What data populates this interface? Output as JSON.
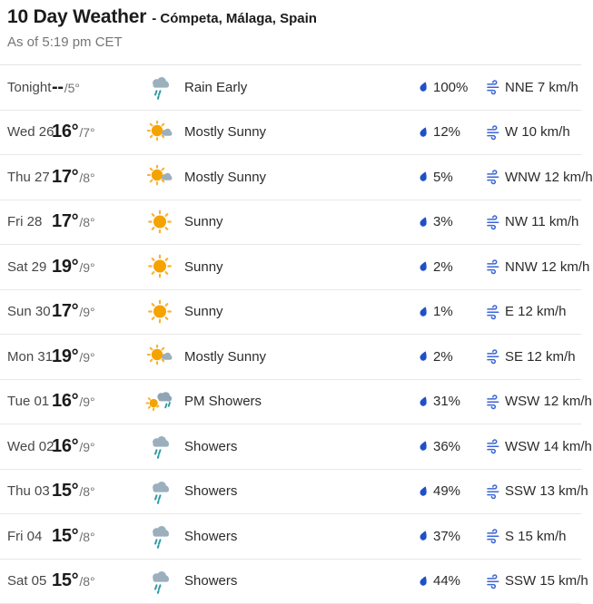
{
  "header": {
    "title": "10 Day Weather",
    "location": "- Cómpeta, Málaga, Spain",
    "as_of": "As of 5:19 pm CET"
  },
  "colors": {
    "precip_droplet": "#1e50c8",
    "wind_icon": "#3b66d6",
    "sun": "#f5a300",
    "sun_rays": "#f9b233",
    "cloud_gray": "#9bafbd",
    "cloud_dark": "#8fa4b5",
    "rain_teal": "#2f9aa5",
    "divider": "#e8e8e8",
    "text_dark": "#1b1b1b",
    "text_gray": "#767676"
  },
  "forecast": {
    "rows": [
      {
        "day": "Tonight",
        "hi": "--",
        "lo": "/5°",
        "icon": "showers",
        "condition": "Rain Early",
        "precip": "100%",
        "wind": "NNE 7 km/h"
      },
      {
        "day": "Wed 26",
        "hi": "16°",
        "lo": "/7°",
        "icon": "mostly-sunny",
        "condition": "Mostly Sunny",
        "precip": "12%",
        "wind": "W 10 km/h"
      },
      {
        "day": "Thu 27",
        "hi": "17°",
        "lo": "/8°",
        "icon": "mostly-sunny",
        "condition": "Mostly Sunny",
        "precip": "5%",
        "wind": "WNW 12 km/h"
      },
      {
        "day": "Fri 28",
        "hi": "17°",
        "lo": "/8°",
        "icon": "sunny",
        "condition": "Sunny",
        "precip": "3%",
        "wind": "NW 11 km/h"
      },
      {
        "day": "Sat 29",
        "hi": "19°",
        "lo": "/9°",
        "icon": "sunny",
        "condition": "Sunny",
        "precip": "2%",
        "wind": "NNW 12 km/h"
      },
      {
        "day": "Sun 30",
        "hi": "17°",
        "lo": "/9°",
        "icon": "sunny",
        "condition": "Sunny",
        "precip": "1%",
        "wind": "E 12 km/h"
      },
      {
        "day": "Mon 31",
        "hi": "19°",
        "lo": "/9°",
        "icon": "mostly-sunny",
        "condition": "Mostly Sunny",
        "precip": "2%",
        "wind": "SE 12 km/h"
      },
      {
        "day": "Tue 01",
        "hi": "16°",
        "lo": "/9°",
        "icon": "pm-showers",
        "condition": "PM Showers",
        "precip": "31%",
        "wind": "WSW 12 km/h"
      },
      {
        "day": "Wed 02",
        "hi": "16°",
        "lo": "/9°",
        "icon": "showers",
        "condition": "Showers",
        "precip": "36%",
        "wind": "WSW 14 km/h"
      },
      {
        "day": "Thu 03",
        "hi": "15°",
        "lo": "/8°",
        "icon": "showers",
        "condition": "Showers",
        "precip": "49%",
        "wind": "SSW 13 km/h"
      },
      {
        "day": "Fri 04",
        "hi": "15°",
        "lo": "/8°",
        "icon": "showers",
        "condition": "Showers",
        "precip": "37%",
        "wind": "S 15 km/h"
      },
      {
        "day": "Sat 05",
        "hi": "15°",
        "lo": "/8°",
        "icon": "showers",
        "condition": "Showers",
        "precip": "44%",
        "wind": "SSW 15 km/h"
      }
    ]
  }
}
